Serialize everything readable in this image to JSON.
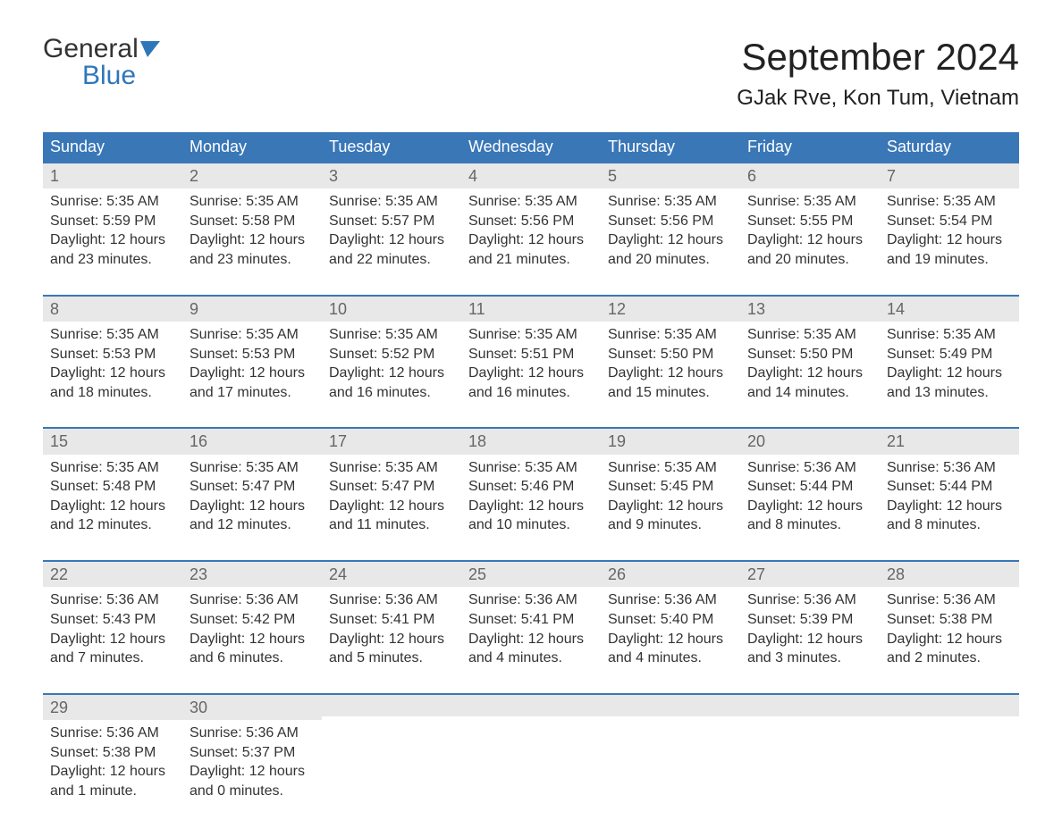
{
  "logo": {
    "general": "General",
    "blue": "Blue",
    "flag_color": "#2f76b9"
  },
  "title": "September 2024",
  "location": "GJak Rve, Kon Tum, Vietnam",
  "colors": {
    "header_bg": "#3a77b7",
    "header_text": "#ffffff",
    "daynum_bg": "#e8e8e8",
    "daynum_text": "#666666",
    "body_text": "#333333",
    "rule": "#3a77b7"
  },
  "weekdays": [
    "Sunday",
    "Monday",
    "Tuesday",
    "Wednesday",
    "Thursday",
    "Friday",
    "Saturday"
  ],
  "weeks": [
    [
      {
        "n": "1",
        "sunrise": "Sunrise: 5:35 AM",
        "sunset": "Sunset: 5:59 PM",
        "d1": "Daylight: 12 hours",
        "d2": "and 23 minutes."
      },
      {
        "n": "2",
        "sunrise": "Sunrise: 5:35 AM",
        "sunset": "Sunset: 5:58 PM",
        "d1": "Daylight: 12 hours",
        "d2": "and 23 minutes."
      },
      {
        "n": "3",
        "sunrise": "Sunrise: 5:35 AM",
        "sunset": "Sunset: 5:57 PM",
        "d1": "Daylight: 12 hours",
        "d2": "and 22 minutes."
      },
      {
        "n": "4",
        "sunrise": "Sunrise: 5:35 AM",
        "sunset": "Sunset: 5:56 PM",
        "d1": "Daylight: 12 hours",
        "d2": "and 21 minutes."
      },
      {
        "n": "5",
        "sunrise": "Sunrise: 5:35 AM",
        "sunset": "Sunset: 5:56 PM",
        "d1": "Daylight: 12 hours",
        "d2": "and 20 minutes."
      },
      {
        "n": "6",
        "sunrise": "Sunrise: 5:35 AM",
        "sunset": "Sunset: 5:55 PM",
        "d1": "Daylight: 12 hours",
        "d2": "and 20 minutes."
      },
      {
        "n": "7",
        "sunrise": "Sunrise: 5:35 AM",
        "sunset": "Sunset: 5:54 PM",
        "d1": "Daylight: 12 hours",
        "d2": "and 19 minutes."
      }
    ],
    [
      {
        "n": "8",
        "sunrise": "Sunrise: 5:35 AM",
        "sunset": "Sunset: 5:53 PM",
        "d1": "Daylight: 12 hours",
        "d2": "and 18 minutes."
      },
      {
        "n": "9",
        "sunrise": "Sunrise: 5:35 AM",
        "sunset": "Sunset: 5:53 PM",
        "d1": "Daylight: 12 hours",
        "d2": "and 17 minutes."
      },
      {
        "n": "10",
        "sunrise": "Sunrise: 5:35 AM",
        "sunset": "Sunset: 5:52 PM",
        "d1": "Daylight: 12 hours",
        "d2": "and 16 minutes."
      },
      {
        "n": "11",
        "sunrise": "Sunrise: 5:35 AM",
        "sunset": "Sunset: 5:51 PM",
        "d1": "Daylight: 12 hours",
        "d2": "and 16 minutes."
      },
      {
        "n": "12",
        "sunrise": "Sunrise: 5:35 AM",
        "sunset": "Sunset: 5:50 PM",
        "d1": "Daylight: 12 hours",
        "d2": "and 15 minutes."
      },
      {
        "n": "13",
        "sunrise": "Sunrise: 5:35 AM",
        "sunset": "Sunset: 5:50 PM",
        "d1": "Daylight: 12 hours",
        "d2": "and 14 minutes."
      },
      {
        "n": "14",
        "sunrise": "Sunrise: 5:35 AM",
        "sunset": "Sunset: 5:49 PM",
        "d1": "Daylight: 12 hours",
        "d2": "and 13 minutes."
      }
    ],
    [
      {
        "n": "15",
        "sunrise": "Sunrise: 5:35 AM",
        "sunset": "Sunset: 5:48 PM",
        "d1": "Daylight: 12 hours",
        "d2": "and 12 minutes."
      },
      {
        "n": "16",
        "sunrise": "Sunrise: 5:35 AM",
        "sunset": "Sunset: 5:47 PM",
        "d1": "Daylight: 12 hours",
        "d2": "and 12 minutes."
      },
      {
        "n": "17",
        "sunrise": "Sunrise: 5:35 AM",
        "sunset": "Sunset: 5:47 PM",
        "d1": "Daylight: 12 hours",
        "d2": "and 11 minutes."
      },
      {
        "n": "18",
        "sunrise": "Sunrise: 5:35 AM",
        "sunset": "Sunset: 5:46 PM",
        "d1": "Daylight: 12 hours",
        "d2": "and 10 minutes."
      },
      {
        "n": "19",
        "sunrise": "Sunrise: 5:35 AM",
        "sunset": "Sunset: 5:45 PM",
        "d1": "Daylight: 12 hours",
        "d2": "and 9 minutes."
      },
      {
        "n": "20",
        "sunrise": "Sunrise: 5:36 AM",
        "sunset": "Sunset: 5:44 PM",
        "d1": "Daylight: 12 hours",
        "d2": "and 8 minutes."
      },
      {
        "n": "21",
        "sunrise": "Sunrise: 5:36 AM",
        "sunset": "Sunset: 5:44 PM",
        "d1": "Daylight: 12 hours",
        "d2": "and 8 minutes."
      }
    ],
    [
      {
        "n": "22",
        "sunrise": "Sunrise: 5:36 AM",
        "sunset": "Sunset: 5:43 PM",
        "d1": "Daylight: 12 hours",
        "d2": "and 7 minutes."
      },
      {
        "n": "23",
        "sunrise": "Sunrise: 5:36 AM",
        "sunset": "Sunset: 5:42 PM",
        "d1": "Daylight: 12 hours",
        "d2": "and 6 minutes."
      },
      {
        "n": "24",
        "sunrise": "Sunrise: 5:36 AM",
        "sunset": "Sunset: 5:41 PM",
        "d1": "Daylight: 12 hours",
        "d2": "and 5 minutes."
      },
      {
        "n": "25",
        "sunrise": "Sunrise: 5:36 AM",
        "sunset": "Sunset: 5:41 PM",
        "d1": "Daylight: 12 hours",
        "d2": "and 4 minutes."
      },
      {
        "n": "26",
        "sunrise": "Sunrise: 5:36 AM",
        "sunset": "Sunset: 5:40 PM",
        "d1": "Daylight: 12 hours",
        "d2": "and 4 minutes."
      },
      {
        "n": "27",
        "sunrise": "Sunrise: 5:36 AM",
        "sunset": "Sunset: 5:39 PM",
        "d1": "Daylight: 12 hours",
        "d2": "and 3 minutes."
      },
      {
        "n": "28",
        "sunrise": "Sunrise: 5:36 AM",
        "sunset": "Sunset: 5:38 PM",
        "d1": "Daylight: 12 hours",
        "d2": "and 2 minutes."
      }
    ],
    [
      {
        "n": "29",
        "sunrise": "Sunrise: 5:36 AM",
        "sunset": "Sunset: 5:38 PM",
        "d1": "Daylight: 12 hours",
        "d2": "and 1 minute."
      },
      {
        "n": "30",
        "sunrise": "Sunrise: 5:36 AM",
        "sunset": "Sunset: 5:37 PM",
        "d1": "Daylight: 12 hours",
        "d2": "and 0 minutes."
      },
      {
        "n": "",
        "sunrise": "",
        "sunset": "",
        "d1": "",
        "d2": ""
      },
      {
        "n": "",
        "sunrise": "",
        "sunset": "",
        "d1": "",
        "d2": ""
      },
      {
        "n": "",
        "sunrise": "",
        "sunset": "",
        "d1": "",
        "d2": ""
      },
      {
        "n": "",
        "sunrise": "",
        "sunset": "",
        "d1": "",
        "d2": ""
      },
      {
        "n": "",
        "sunrise": "",
        "sunset": "",
        "d1": "",
        "d2": ""
      }
    ]
  ]
}
